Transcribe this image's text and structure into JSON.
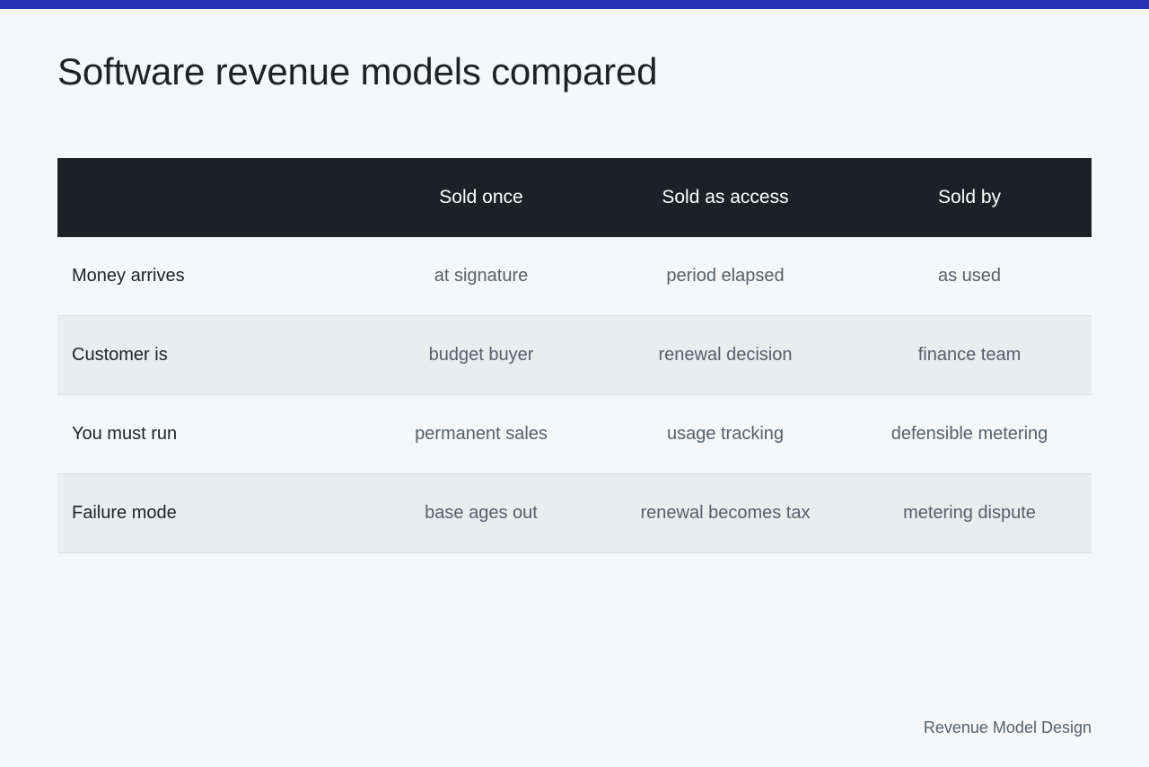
{
  "accent_color": "#2433b5",
  "title": "Software revenue models compared",
  "table": {
    "header": {
      "corner": "",
      "columns": [
        "Sold once",
        "Sold as access",
        "Sold by"
      ]
    },
    "rows": [
      {
        "label": "Money arrives",
        "values": [
          "at signature",
          "period elapsed",
          "as used"
        ]
      },
      {
        "label": "Customer is",
        "values": [
          "budget buyer",
          "renewal decision",
          "finance team"
        ]
      },
      {
        "label": "You must run",
        "values": [
          "permanent sales",
          "usage tracking",
          "defensible metering"
        ]
      },
      {
        "label": "Failure mode",
        "values": [
          "base ages out",
          "renewal becomes tax",
          "metering dispute"
        ]
      }
    ]
  },
  "footer": "Revenue Model Design"
}
